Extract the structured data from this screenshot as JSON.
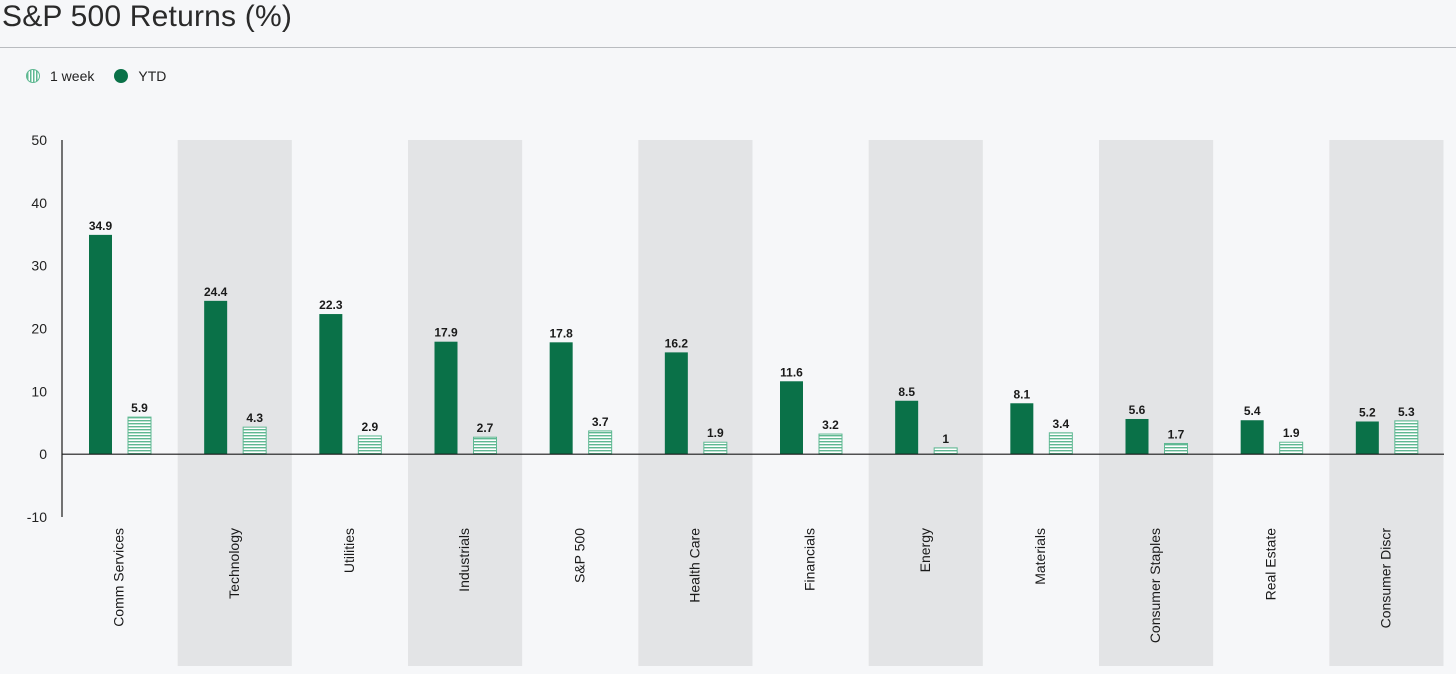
{
  "chart_data": {
    "type": "bar",
    "title": "S&P 500 Returns (%)",
    "xlabel": "",
    "ylabel": "",
    "ylim": [
      -10,
      50
    ],
    "yticks": [
      50,
      40,
      30,
      20,
      10,
      0,
      -10
    ],
    "legend_position": "top-left",
    "categories": [
      "Comm Services",
      "Technology",
      "Utilities",
      "Industrials",
      "S&P 500",
      "Health Care",
      "Financials",
      "Energy",
      "Materials",
      "Consumer Staples",
      "Real Estate",
      "Consumer Discr"
    ],
    "series": [
      {
        "name": "YTD",
        "values": [
          34.9,
          24.4,
          22.3,
          17.9,
          17.8,
          16.2,
          11.6,
          8.5,
          8.1,
          5.6,
          5.4,
          5.2
        ],
        "color": "#0a7148"
      },
      {
        "name": "1 week",
        "values": [
          5.9,
          4.3,
          2.9,
          2.7,
          3.7,
          1.9,
          3.2,
          1,
          3.4,
          1.7,
          1.9,
          5.3
        ],
        "color": "#5fb892"
      }
    ],
    "band_color": "#e3e4e6"
  }
}
